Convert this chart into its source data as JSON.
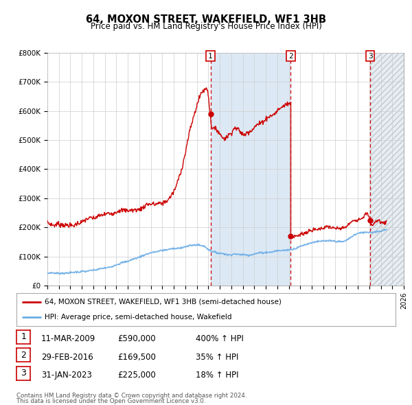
{
  "title": "64, MOXON STREET, WAKEFIELD, WF1 3HB",
  "subtitle": "Price paid vs. HM Land Registry's House Price Index (HPI)",
  "legend_line1": "64, MOXON STREET, WAKEFIELD, WF1 3HB (semi-detached house)",
  "legend_line2": "HPI: Average price, semi-detached house, Wakefield",
  "footer1": "Contains HM Land Registry data © Crown copyright and database right 2024.",
  "footer2": "This data is licensed under the Open Government Licence v3.0.",
  "transactions": [
    {
      "num": 1,
      "date": "11-MAR-2009",
      "price": "£590,000",
      "hpi": "400% ↑ HPI",
      "year": 2009.19
    },
    {
      "num": 2,
      "date": "29-FEB-2016",
      "price": "£169,500",
      "hpi": "35% ↑ HPI",
      "year": 2016.17
    },
    {
      "num": 3,
      "date": "31-JAN-2023",
      "price": "£225,000",
      "hpi": "18% ↑ HPI",
      "year": 2023.08
    }
  ],
  "transaction_values": [
    590000,
    169500,
    225000
  ],
  "xmin": 1995,
  "xmax": 2026,
  "ymin": 0,
  "ymax": 800000,
  "yticks": [
    0,
    100000,
    200000,
    300000,
    400000,
    500000,
    600000,
    700000,
    800000
  ],
  "ytick_labels": [
    "£0",
    "£100K",
    "£200K",
    "£300K",
    "£400K",
    "£500K",
    "£600K",
    "£700K",
    "£800K"
  ],
  "red_line_color": "#cc0000",
  "blue_line_color": "#6aace6",
  "vline_color": "#cc0000",
  "shade_color": "#dce9f5",
  "hatch_color": "#d0d8e0",
  "background_color": "#ffffff",
  "grid_color": "#cccccc"
}
